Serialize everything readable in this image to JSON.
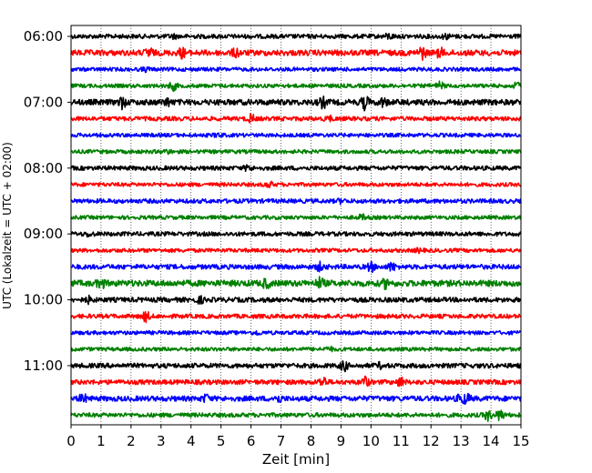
{
  "chart_data": {
    "type": "line",
    "title": "",
    "xlabel": "Zeit  [min]",
    "ylabel": "UTC (Lokalzeit = UTC + 02:00)",
    "xlim": [
      0,
      15
    ],
    "x_ticks": [
      "0",
      "1",
      "2",
      "3",
      "4",
      "5",
      "6",
      "7",
      "8",
      "9",
      "10",
      "11",
      "12",
      "13",
      "14",
      "15"
    ],
    "y_ticks": [
      "06:00",
      "07:00",
      "08:00",
      "09:00",
      "10:00",
      "11:00"
    ],
    "grid": "vertical dotted lines at each minute",
    "legend": "none",
    "trace_colors": [
      "#000000",
      "#ff0000",
      "#0000ff",
      "#008000"
    ],
    "trace_interval_minutes": 15,
    "first_trace": "06:00",
    "traces": [
      {
        "start": "06:00",
        "color": "#000000",
        "amplitude": 0.9,
        "bursts": [
          [
            10.6,
            0.9
          ],
          [
            12.5,
            0.8
          ],
          [
            3.4,
            0.6
          ]
        ]
      },
      {
        "start": "06:15",
        "color": "#ff0000",
        "amplitude": 1.2,
        "bursts": [
          [
            2.6,
            1.8
          ],
          [
            3.7,
            1.6
          ],
          [
            5.5,
            1.4
          ],
          [
            11.7,
            2.2
          ],
          [
            12.3,
            1.5
          ]
        ]
      },
      {
        "start": "06:30",
        "color": "#0000ff",
        "amplitude": 0.8,
        "bursts": [
          [
            2.5,
            0.6
          ]
        ]
      },
      {
        "start": "06:45",
        "color": "#008000",
        "amplitude": 0.8,
        "bursts": [
          [
            3.4,
            1.6
          ],
          [
            12.3,
            1.2
          ],
          [
            14.9,
            1.5
          ]
        ]
      },
      {
        "start": "07:00",
        "color": "#000000",
        "amplitude": 1.2,
        "bursts": [
          [
            1.7,
            2.0
          ],
          [
            3.2,
            1.2
          ],
          [
            8.4,
            1.8
          ],
          [
            9.8,
            2.5
          ],
          [
            10.4,
            1.4
          ]
        ]
      },
      {
        "start": "07:15",
        "color": "#ff0000",
        "amplitude": 0.9,
        "bursts": [
          [
            6.0,
            1.4
          ],
          [
            8.6,
            0.8
          ]
        ]
      },
      {
        "start": "07:30",
        "color": "#0000ff",
        "amplitude": 0.8,
        "bursts": [
          [
            4.9,
            0.6
          ]
        ]
      },
      {
        "start": "07:45",
        "color": "#008000",
        "amplitude": 0.8,
        "bursts": [
          [
            3.2,
            0.6
          ]
        ]
      },
      {
        "start": "08:00",
        "color": "#000000",
        "amplitude": 0.9,
        "bursts": [
          [
            5.9,
            0.9
          ]
        ]
      },
      {
        "start": "08:15",
        "color": "#ff0000",
        "amplitude": 0.8,
        "bursts": [
          [
            6.6,
            1.0
          ]
        ]
      },
      {
        "start": "08:30",
        "color": "#0000ff",
        "amplitude": 0.9,
        "bursts": [
          [
            9.0,
            0.6
          ]
        ]
      },
      {
        "start": "08:45",
        "color": "#008000",
        "amplitude": 0.8,
        "bursts": [
          [
            9.7,
            0.9
          ]
        ]
      },
      {
        "start": "09:00",
        "color": "#000000",
        "amplitude": 0.9,
        "bursts": [
          [
            0.6,
            0.7
          ]
        ]
      },
      {
        "start": "09:15",
        "color": "#ff0000",
        "amplitude": 0.8,
        "bursts": [
          [
            11.6,
            0.6
          ]
        ]
      },
      {
        "start": "09:30",
        "color": "#0000ff",
        "amplitude": 1.0,
        "bursts": [
          [
            8.3,
            1.4
          ],
          [
            10.0,
            1.6
          ],
          [
            10.7,
            1.4
          ]
        ]
      },
      {
        "start": "09:45",
        "color": "#008000",
        "amplitude": 1.3,
        "bursts": [
          [
            1.0,
            1.6
          ],
          [
            6.5,
            1.4
          ],
          [
            8.3,
            1.8
          ],
          [
            10.5,
            1.5
          ]
        ]
      },
      {
        "start": "10:00",
        "color": "#000000",
        "amplitude": 1.0,
        "bursts": [
          [
            0.6,
            1.0
          ],
          [
            4.3,
            1.0
          ]
        ]
      },
      {
        "start": "10:15",
        "color": "#ff0000",
        "amplitude": 0.9,
        "bursts": [
          [
            2.5,
            1.8
          ]
        ]
      },
      {
        "start": "10:30",
        "color": "#0000ff",
        "amplitude": 0.8,
        "bursts": [
          [
            6.2,
            0.6
          ]
        ]
      },
      {
        "start": "10:45",
        "color": "#008000",
        "amplitude": 0.8,
        "bursts": [
          [
            8.6,
            0.7
          ]
        ]
      },
      {
        "start": "11:00",
        "color": "#000000",
        "amplitude": 1.0,
        "bursts": [
          [
            9.1,
            1.8
          ],
          [
            10.3,
            0.8
          ]
        ]
      },
      {
        "start": "11:15",
        "color": "#ff0000",
        "amplitude": 1.0,
        "bursts": [
          [
            8.4,
            1.8
          ],
          [
            9.8,
            2.0
          ],
          [
            11.0,
            1.6
          ]
        ]
      },
      {
        "start": "11:30",
        "color": "#0000ff",
        "amplitude": 1.1,
        "bursts": [
          [
            0.4,
            1.4
          ],
          [
            4.5,
            1.2
          ],
          [
            6.9,
            1.2
          ],
          [
            13.0,
            1.6
          ],
          [
            13.2,
            1.4
          ]
        ]
      },
      {
        "start": "11:45",
        "color": "#008000",
        "amplitude": 0.9,
        "bursts": [
          [
            13.9,
            1.8
          ],
          [
            14.3,
            2.0
          ]
        ]
      }
    ]
  }
}
